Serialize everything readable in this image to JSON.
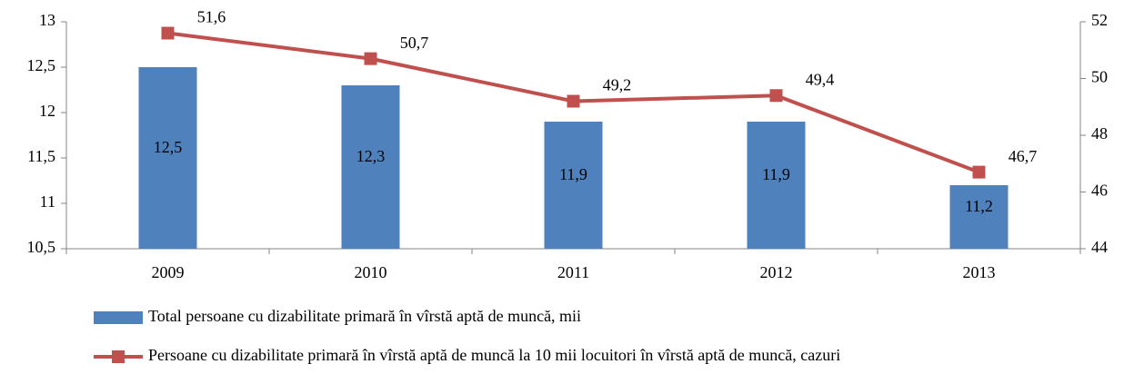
{
  "chart_data": {
    "type": "bar_line",
    "categories": [
      "2009",
      "2010",
      "2011",
      "2012",
      "2013"
    ],
    "series": [
      {
        "name": "Total persoane cu dizabilitate primară în vîrstă aptă de muncă, mii",
        "type": "bar",
        "color": "#4f81bd",
        "values": [
          12.5,
          12.3,
          11.9,
          11.9,
          11.2
        ],
        "value_labels": [
          "12,5",
          "12,3",
          "11,9",
          "11,9",
          "11,2"
        ]
      },
      {
        "name": "Persoane cu dizabilitate primară în vîrstă aptă de muncă la 10 mii locuitori în vîrstă aptă de muncă, cazuri",
        "type": "line",
        "axis": "y2",
        "color": "#c0504d",
        "values": [
          51.6,
          50.7,
          49.2,
          49.4,
          46.7
        ],
        "value_labels": [
          "51,6",
          "50,7",
          "49,2",
          "49,4",
          "46,7"
        ]
      }
    ],
    "ylim": [
      10.5,
      13
    ],
    "yticks": [
      {
        "value": 10.5,
        "label": "10,5"
      },
      11,
      {
        "value": 11.5,
        "label": "11,5"
      },
      12,
      {
        "value": 12.5,
        "label": "12,5"
      },
      13
    ],
    "y2lim": [
      44,
      52
    ],
    "y2ticks": [
      44,
      46,
      48,
      50,
      52
    ],
    "grid": false
  }
}
